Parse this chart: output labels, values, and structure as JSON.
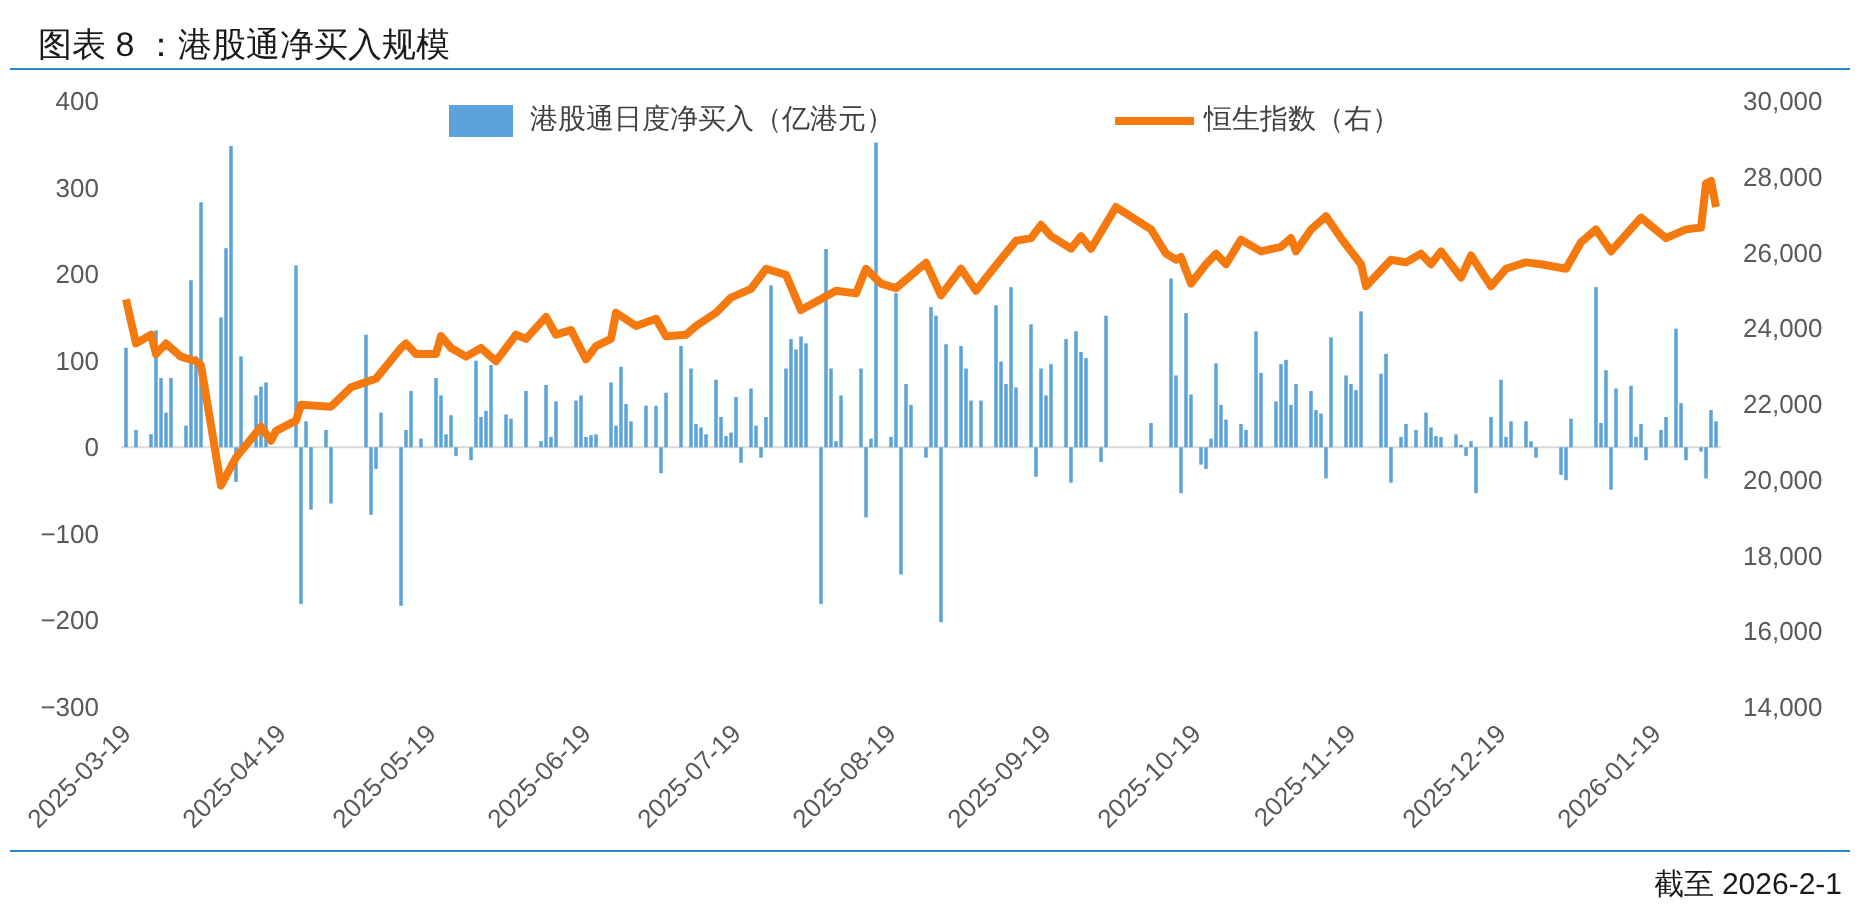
{
  "chart_data": {
    "type": "bar",
    "title": "图表 8 ：港股通净买入规模",
    "annotations": [
      "截至 2026-2-1"
    ],
    "xlim": [
      "2025-03-18",
      "2026-02-01"
    ],
    "xticks": [
      "2025-03-19",
      "2025-04-19",
      "2025-05-19",
      "2025-06-19",
      "2025-07-19",
      "2025-08-19",
      "2025-09-19",
      "2025-10-19",
      "2025-11-19",
      "2025-12-19",
      "2026-01-19"
    ],
    "ylim": [
      -300,
      400
    ],
    "yticks": [
      -300,
      -200,
      -100,
      0,
      100,
      200,
      300,
      400
    ],
    "y2lim": [
      14000,
      30000
    ],
    "y2ticks": [
      {
        "value": 14000,
        "label": "14,000"
      },
      {
        "value": 16000,
        "label": "16,000"
      },
      {
        "value": 18000,
        "label": "18,000"
      },
      {
        "value": 20000,
        "label": "20,000"
      },
      {
        "value": 22000,
        "label": "22,000"
      },
      {
        "value": 24000,
        "label": "24,000"
      },
      {
        "value": 26000,
        "label": "26,000"
      },
      {
        "value": 28000,
        "label": "28,000"
      },
      {
        "value": 30000,
        "label": "30,000"
      }
    ],
    "grid": false,
    "legend": "top",
    "ref_lines": [
      {
        "axis": "y",
        "value": 0,
        "color": "#d9d9d9"
      }
    ],
    "series": [
      {
        "name": "港股通日度净买入（亿港元）",
        "color": "#5ba3d9",
        "x": [
          "2025-03-19",
          "2025-03-21",
          "2025-03-24",
          "2025-03-25",
          "2025-03-26",
          "2025-03-27",
          "2025-03-28",
          "2025-03-31",
          "2025-04-01",
          "2025-04-02",
          "2025-04-03",
          "2025-04-07",
          "2025-04-08",
          "2025-04-09",
          "2025-04-10",
          "2025-04-11",
          "2025-04-14",
          "2025-04-15",
          "2025-04-16",
          "2025-04-22",
          "2025-04-23",
          "2025-04-24",
          "2025-04-25",
          "2025-04-28",
          "2025-04-29",
          "2025-05-06",
          "2025-05-07",
          "2025-05-08",
          "2025-05-09",
          "2025-05-13",
          "2025-05-14",
          "2025-05-15",
          "2025-05-17",
          "2025-05-20",
          "2025-05-21",
          "2025-05-22",
          "2025-05-23",
          "2025-05-24",
          "2025-05-27",
          "2025-05-28",
          "2025-05-29",
          "2025-05-30",
          "2025-05-31",
          "2025-06-03",
          "2025-06-04",
          "2025-06-07",
          "2025-06-10",
          "2025-06-11",
          "2025-06-12",
          "2025-06-13",
          "2025-06-17",
          "2025-06-18",
          "2025-06-19",
          "2025-06-20",
          "2025-06-21",
          "2025-06-24",
          "2025-06-25",
          "2025-06-26",
          "2025-06-27",
          "2025-06-28",
          "2025-07-01",
          "2025-07-03",
          "2025-07-04",
          "2025-07-05",
          "2025-07-08",
          "2025-07-10",
          "2025-07-11",
          "2025-07-12",
          "2025-07-13",
          "2025-07-15",
          "2025-07-16",
          "2025-07-17",
          "2025-07-18",
          "2025-07-19",
          "2025-07-20",
          "2025-07-22",
          "2025-07-23",
          "2025-07-24",
          "2025-07-25",
          "2025-07-26",
          "2025-07-29",
          "2025-07-30",
          "2025-07-31",
          "2025-08-01",
          "2025-08-02",
          "2025-08-05",
          "2025-08-06",
          "2025-08-07",
          "2025-08-08",
          "2025-08-09",
          "2025-08-13",
          "2025-08-14",
          "2025-08-15",
          "2025-08-16",
          "2025-08-19",
          "2025-08-20",
          "2025-08-21",
          "2025-08-22",
          "2025-08-23",
          "2025-08-26",
          "2025-08-27",
          "2025-08-28",
          "2025-08-29",
          "2025-08-30",
          "2025-09-02",
          "2025-09-03",
          "2025-09-04",
          "2025-09-06",
          "2025-09-09",
          "2025-09-10",
          "2025-09-11",
          "2025-09-12",
          "2025-09-13",
          "2025-09-16",
          "2025-09-17",
          "2025-09-18",
          "2025-09-19",
          "2025-09-20",
          "2025-09-23",
          "2025-09-24",
          "2025-09-25",
          "2025-09-26",
          "2025-09-27",
          "2025-09-30",
          "2025-10-01",
          "2025-10-10",
          "2025-10-14",
          "2025-10-15",
          "2025-10-16",
          "2025-10-17",
          "2025-10-18",
          "2025-10-20",
          "2025-10-21",
          "2025-10-22",
          "2025-10-23",
          "2025-10-24",
          "2025-10-25",
          "2025-10-28",
          "2025-10-29",
          "2025-10-31",
          "2025-11-01",
          "2025-11-04",
          "2025-11-05",
          "2025-11-06",
          "2025-11-07",
          "2025-11-08",
          "2025-11-11",
          "2025-11-12",
          "2025-11-13",
          "2025-11-14",
          "2025-11-15",
          "2025-11-18",
          "2025-11-19",
          "2025-11-20",
          "2025-11-21",
          "2025-11-25",
          "2025-11-26",
          "2025-11-27",
          "2025-11-29",
          "2025-11-30",
          "2025-12-02",
          "2025-12-04",
          "2025-12-05",
          "2025-12-06",
          "2025-12-07",
          "2025-12-10",
          "2025-12-11",
          "2025-12-12",
          "2025-12-13",
          "2025-12-14",
          "2025-12-17",
          "2025-12-19",
          "2025-12-20",
          "2025-12-21",
          "2025-12-24",
          "2025-12-25",
          "2025-12-26",
          "2025-12-31",
          "2026-01-01",
          "2026-01-02",
          "2026-01-07",
          "2026-01-08",
          "2026-01-09",
          "2026-01-10",
          "2026-01-11",
          "2026-01-14",
          "2026-01-15",
          "2026-01-16",
          "2026-01-17",
          "2026-01-20",
          "2026-01-21",
          "2026-01-23",
          "2026-01-24",
          "2026-01-25",
          "2026-01-28",
          "2026-01-29",
          "2026-01-30",
          "2026-01-31"
        ],
        "values": [
          115,
          20,
          15,
          135,
          80,
          40,
          80,
          25,
          193,
          105,
          283,
          150,
          230,
          348,
          -40,
          105,
          60,
          70,
          75,
          210,
          -181,
          30,
          -72,
          20,
          -65,
          130,
          -78,
          -25,
          40,
          -183,
          20,
          65,
          10,
          80,
          60,
          15,
          37,
          -10,
          -15,
          100,
          35,
          42,
          95,
          38,
          33,
          65,
          7,
          72,
          12,
          53,
          54,
          60,
          12,
          14,
          15,
          75,
          25,
          93,
          50,
          30,
          48,
          48,
          -30,
          63,
          117,
          91,
          27,
          23,
          15,
          78,
          35,
          13,
          17,
          58,
          -18,
          68,
          25,
          -12,
          35,
          187,
          91,
          125,
          113,
          128,
          120,
          -181,
          229,
          91,
          7,
          60,
          91,
          -81,
          10,
          352,
          12,
          178,
          -147,
          73,
          49,
          -12,
          162,
          152,
          -202,
          119,
          117,
          91,
          54,
          54,
          164,
          99,
          73,
          185,
          69,
          142,
          -34,
          91,
          60,
          96,
          125,
          -41,
          134,
          110,
          103,
          -17,
          152,
          28,
          195,
          83,
          -53,
          155,
          61,
          -20,
          -25,
          10,
          97,
          49,
          32,
          27,
          20,
          134,
          86,
          53,
          96,
          101,
          49,
          73,
          65,
          43,
          39,
          -36,
          127,
          83,
          73,
          66,
          157,
          85,
          108,
          -41,
          12,
          27,
          20,
          40,
          23,
          13,
          12,
          15,
          3,
          -10,
          7,
          -53,
          35,
          78,
          12,
          30,
          30,
          7,
          -12,
          -32,
          -38,
          33,
          185,
          28,
          89,
          -49,
          68,
          71,
          12,
          27,
          -15,
          20,
          35,
          137,
          51,
          -15,
          -5,
          -36,
          43,
          30
        ]
      },
      {
        "name": "恒生指数（右）",
        "type": "line",
        "axis": "y2",
        "color": "#f47a10",
        "x": [
          "2025-03-19",
          "2025-03-21",
          "2025-03-24",
          "2025-03-25",
          "2025-03-27",
          "2025-03-30",
          "2025-04-02",
          "2025-04-03",
          "2025-04-07",
          "2025-04-10",
          "2025-04-15",
          "2025-04-17",
          "2025-04-18",
          "2025-04-22",
          "2025-04-23",
          "2025-04-29",
          "2025-05-03",
          "2025-05-08",
          "2025-05-13",
          "2025-05-14",
          "2025-05-16",
          "2025-05-20",
          "2025-05-21",
          "2025-05-23",
          "2025-05-26",
          "2025-05-29",
          "2025-06-01",
          "2025-06-05",
          "2025-06-07",
          "2025-06-11",
          "2025-06-13",
          "2025-06-16",
          "2025-06-19",
          "2025-06-21",
          "2025-06-24",
          "2025-06-25",
          "2025-06-29",
          "2025-07-03",
          "2025-07-05",
          "2025-07-09",
          "2025-07-11",
          "2025-07-15",
          "2025-07-18",
          "2025-07-22",
          "2025-07-25",
          "2025-07-29",
          "2025-08-01",
          "2025-08-08",
          "2025-08-12",
          "2025-08-14",
          "2025-08-17",
          "2025-08-20",
          "2025-08-26",
          "2025-08-29",
          "2025-09-02",
          "2025-09-05",
          "2025-09-08",
          "2025-09-13",
          "2025-09-16",
          "2025-09-18",
          "2025-09-20",
          "2025-09-24",
          "2025-09-26",
          "2025-09-28",
          "2025-10-03",
          "2025-10-10",
          "2025-10-13",
          "2025-10-15",
          "2025-10-16",
          "2025-10-18",
          "2025-10-21",
          "2025-10-23",
          "2025-10-25",
          "2025-10-28",
          "2025-11-01",
          "2025-11-05",
          "2025-11-07",
          "2025-11-08",
          "2025-11-11",
          "2025-11-14",
          "2025-11-17",
          "2025-11-21",
          "2025-11-22",
          "2025-11-27",
          "2025-11-30",
          "2025-12-03",
          "2025-12-05",
          "2025-12-07",
          "2025-12-11",
          "2025-12-13",
          "2025-12-17",
          "2025-12-20",
          "2025-12-24",
          "2025-12-27",
          "2026-01-01",
          "2026-01-04",
          "2026-01-07",
          "2026-01-10",
          "2026-01-16",
          "2026-01-21",
          "2026-01-25",
          "2026-01-28",
          "2026-01-29",
          "2026-01-30",
          "2026-01-31"
        ],
        "values": [
          24760,
          23600,
          23830,
          23320,
          23600,
          23250,
          23130,
          23020,
          19850,
          20590,
          21400,
          21030,
          21290,
          21560,
          21980,
          21930,
          22440,
          22670,
          23480,
          23600,
          23320,
          23320,
          23790,
          23480,
          23250,
          23480,
          23130,
          23830,
          23720,
          24300,
          23830,
          23950,
          23180,
          23530,
          23720,
          24410,
          24060,
          24250,
          23790,
          23830,
          24060,
          24410,
          24810,
          25040,
          25570,
          25410,
          24480,
          24990,
          24920,
          25570,
          25180,
          25060,
          25730,
          24870,
          25570,
          24990,
          25500,
          26310,
          26380,
          26730,
          26430,
          26100,
          26430,
          26100,
          27200,
          26610,
          25970,
          25810,
          25880,
          25180,
          25690,
          25970,
          25690,
          26340,
          26030,
          26150,
          26380,
          26030,
          26610,
          26960,
          26380,
          25690,
          25110,
          25810,
          25740,
          25970,
          25690,
          26030,
          25340,
          25920,
          25110,
          25570,
          25740,
          25690,
          25570,
          26270,
          26610,
          26030,
          26920,
          26380,
          26610,
          26660,
          27820,
          27890,
          27200
        ]
      }
    ]
  }
}
